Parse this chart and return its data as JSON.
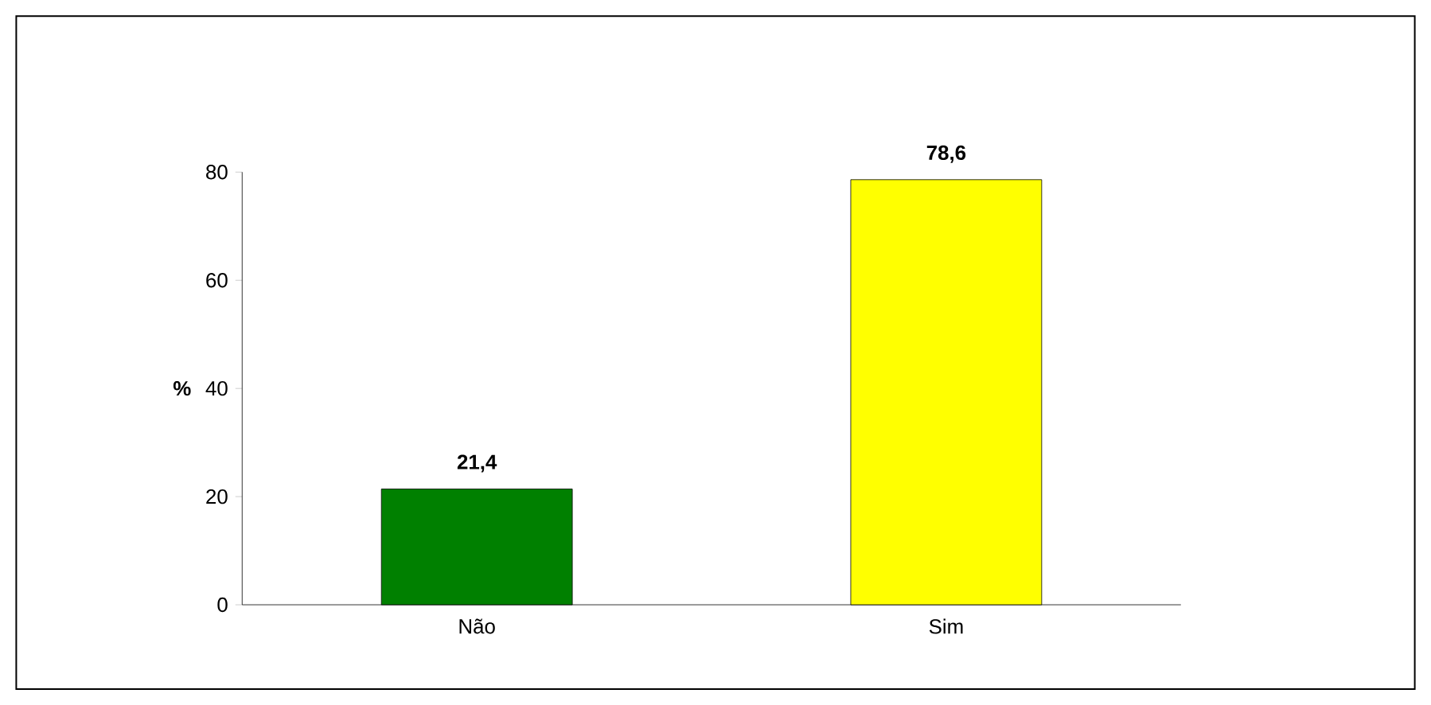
{
  "chart_data": {
    "type": "bar",
    "ylabel": "%",
    "categories": [
      "Não",
      "Sim"
    ],
    "values": [
      21.4,
      78.6
    ],
    "colors": [
      "#008000",
      "#ffff00"
    ],
    "value_labels": [
      "21,4",
      "78,6"
    ],
    "ylim": [
      0,
      80
    ],
    "yticks": [
      0,
      20,
      40,
      60,
      80
    ],
    "grid": false
  }
}
